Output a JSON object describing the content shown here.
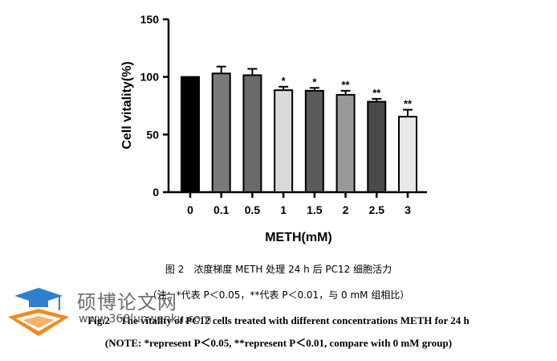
{
  "chart_data": {
    "type": "bar",
    "categories": [
      "0",
      "0.1",
      "0.5",
      "1",
      "1.5",
      "2",
      "2.5",
      "3"
    ],
    "values": [
      100,
      103,
      101.5,
      88.5,
      88,
      84.5,
      78.5,
      65.5
    ],
    "errors": [
      0,
      6,
      5.5,
      3,
      2.5,
      3.5,
      2.5,
      6
    ],
    "significance": [
      "",
      "",
      "",
      "*",
      "*",
      "**",
      "**",
      "**"
    ],
    "bar_colors": [
      "#000000",
      "#7a7a7a",
      "#6a6a6a",
      "#d9d9d9",
      "#5a5a5a",
      "#999999",
      "#4a4a4a",
      "#e8e8e8"
    ],
    "xlabel": "METH(mM)",
    "ylabel": "Cell vitality(%)",
    "ylim": [
      0,
      150
    ],
    "yticks": [
      0,
      50,
      100,
      150
    ],
    "grid": false,
    "legend": "none"
  },
  "caption": {
    "cn_title": "图 2　浓度梯度 METH 处理 24 h 后 PC12 细胞活力",
    "cn_note": "（注：*代表 P＜0.05，**代表 P＜0.01，与 0 mM 组相比）",
    "en_title": "Fig.2　The vitality of PC12 cells treated with different concentrations METH for 24 h",
    "en_note": "(NOTE: *represent P＜0.05, **represent P＜0.01, compare with 0 mM group)"
  },
  "watermark": {
    "name": "硕博论文网",
    "url": "www.360lunwenku.com"
  }
}
